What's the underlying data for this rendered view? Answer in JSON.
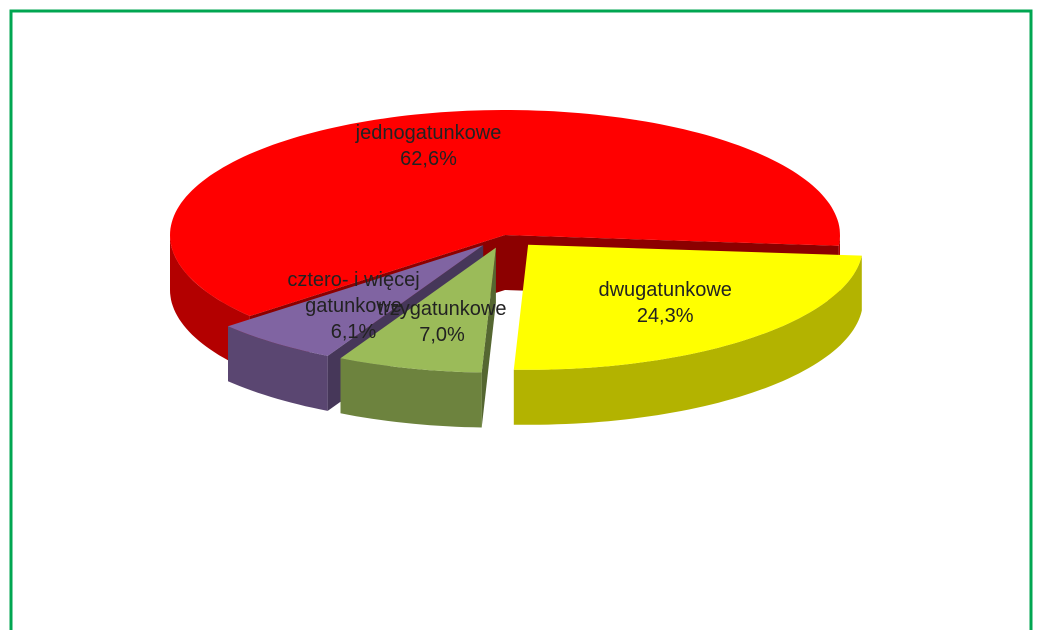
{
  "chart_data": {
    "type": "pie3d",
    "categories": [
      "jednogatunkowe",
      "dwugatunkowe",
      "trzygatunkowe",
      "cztero- i więcej gatunkowe"
    ],
    "values": [
      62.6,
      24.3,
      7.0,
      6.1
    ],
    "value_labels": [
      "62,6%",
      "24,3%",
      "7,0%",
      "6,1%"
    ],
    "colors": [
      "#ff0000",
      "#ffff00",
      "#9bbb59",
      "#8064a2"
    ]
  }
}
